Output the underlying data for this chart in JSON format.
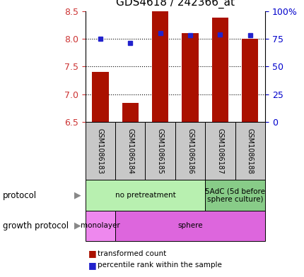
{
  "title": "GDS4618 / 242366_at",
  "samples": [
    "GSM1086183",
    "GSM1086184",
    "GSM1086185",
    "GSM1086186",
    "GSM1086187",
    "GSM1086188"
  ],
  "red_values": [
    7.4,
    6.84,
    8.5,
    8.1,
    8.38,
    8.0
  ],
  "blue_values": [
    8.0,
    7.93,
    8.1,
    8.07,
    8.08,
    8.06
  ],
  "ylim": [
    6.5,
    8.5
  ],
  "y_ticks": [
    6.5,
    7.0,
    7.5,
    8.0,
    8.5
  ],
  "right_y_ticks": [
    0,
    25,
    50,
    75,
    100
  ],
  "right_y_labels": [
    "0",
    "25",
    "50",
    "75",
    "100%"
  ],
  "bar_color": "#aa1100",
  "dot_color": "#2222cc",
  "protocol_groups": [
    {
      "label": "no pretreatment",
      "start": 0,
      "end": 4,
      "color": "#b8f0b0"
    },
    {
      "label": "5AdC (5d before\nsphere culture)",
      "start": 4,
      "end": 6,
      "color": "#88cc88"
    }
  ],
  "growth_groups": [
    {
      "label": "monolayer",
      "start": 0,
      "end": 1,
      "color": "#ee88ee"
    },
    {
      "label": "sphere",
      "start": 1,
      "end": 6,
      "color": "#dd66dd"
    }
  ],
  "legend_red_label": "transformed count",
  "legend_blue_label": "percentile rank within the sample",
  "label_color_left": "#cc3333",
  "label_color_right": "#0000cc",
  "sample_bg_color": "#c8c8c8",
  "grid_yticks": [
    7.0,
    7.5,
    8.0
  ]
}
